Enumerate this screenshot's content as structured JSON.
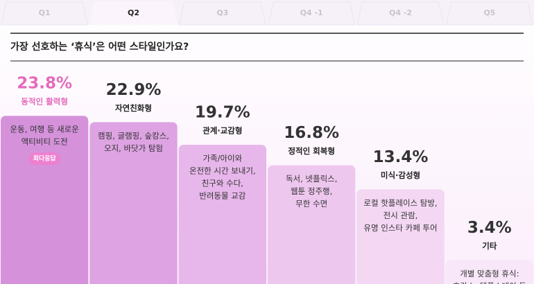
{
  "tabs": [
    "Q1",
    "Q2",
    "Q3",
    "Q4 -1",
    "Q4 -2",
    "Q5"
  ],
  "active_tab": 1,
  "chart_data": {
    "type": "bar",
    "title": "가장 선호하는 ‘휴식’은 어떤 스타일인가요?",
    "categories": [
      "동적인 활력형",
      "자연친화형",
      "관계·교감형",
      "정적인 회복형",
      "미식·감성형",
      "기타"
    ],
    "values": [
      23.8,
      22.9,
      19.7,
      16.8,
      13.4,
      3.4
    ],
    "value_labels": [
      "23.8%",
      "22.9%",
      "19.7%",
      "16.8%",
      "13.4%",
      "3.4%"
    ],
    "descriptions": [
      [
        "운동, 여행 등 새로운",
        "액티비티 도전"
      ],
      [
        "캠핑, 글램핑, 숲캉스,",
        "오지, 바닷가 탐험"
      ],
      [
        "가족/아이와",
        "온전한 시간 보내기,",
        "친구와 수다,",
        "반려동물 교감"
      ],
      [
        "독서, 넷플릭스,",
        "웹툰 정주행,",
        "무한 수면"
      ],
      [
        "로컬 핫플레이스 탐방,",
        "전시 관람,",
        "유명 인스타 카페 투어"
      ],
      [
        "개별 맞춤형 휴식:",
        "호캉스, 템플스테이 등"
      ]
    ],
    "badge": "최다응답",
    "colors": [
      "#d592db",
      "#dea3e3",
      "#e7b6ea",
      "#eec7ef",
      "#f3d7f3",
      "#f8e7f8"
    ]
  }
}
